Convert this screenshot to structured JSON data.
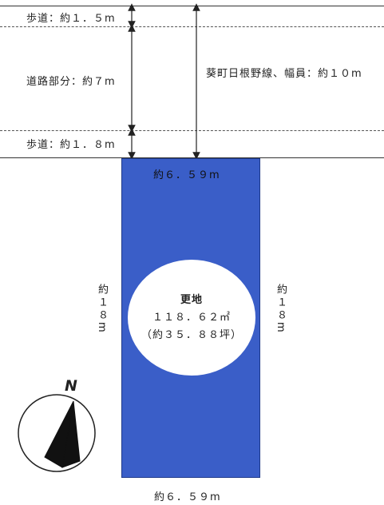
{
  "road": {
    "sidewalk_top_label": "歩道：約１．５m",
    "roadway_label": "道路部分：約７m",
    "sidewalk_bottom_label": "歩道：約１．８m",
    "road_name_label": "葵町日根野線、幅員：約１０m"
  },
  "parcel": {
    "top_width_label": "約６．５９m",
    "bottom_width_label": "約６．５９m",
    "left_depth_label": "約１８m",
    "right_depth_label": "約１８m",
    "land_type": "更地",
    "area_sqm": "１１８．６２㎡",
    "area_tsubo": "（約３５．８８坪）",
    "fill_color": "#3a5ec8"
  },
  "compass": {
    "north_label": "N",
    "icon": "north-arrow-icon"
  }
}
